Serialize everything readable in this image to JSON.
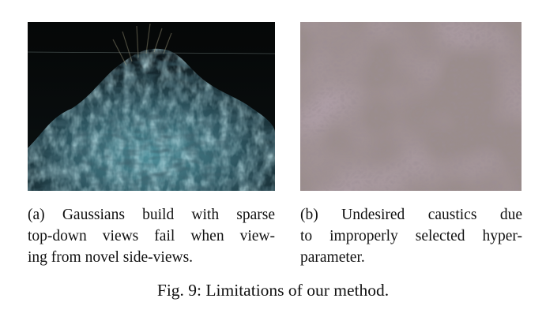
{
  "figure": {
    "panel_a": {
      "caption_lines": [
        "(a) Gaussians build with sparse",
        "top-down views fail when view-",
        "ing from novel side-views."
      ]
    },
    "panel_b": {
      "caption_lines": [
        "(b) Undesired caustics due",
        "to improperly selected hyper-",
        "parameter."
      ]
    },
    "caption": "Fig. 9: Limitations of our method."
  }
}
